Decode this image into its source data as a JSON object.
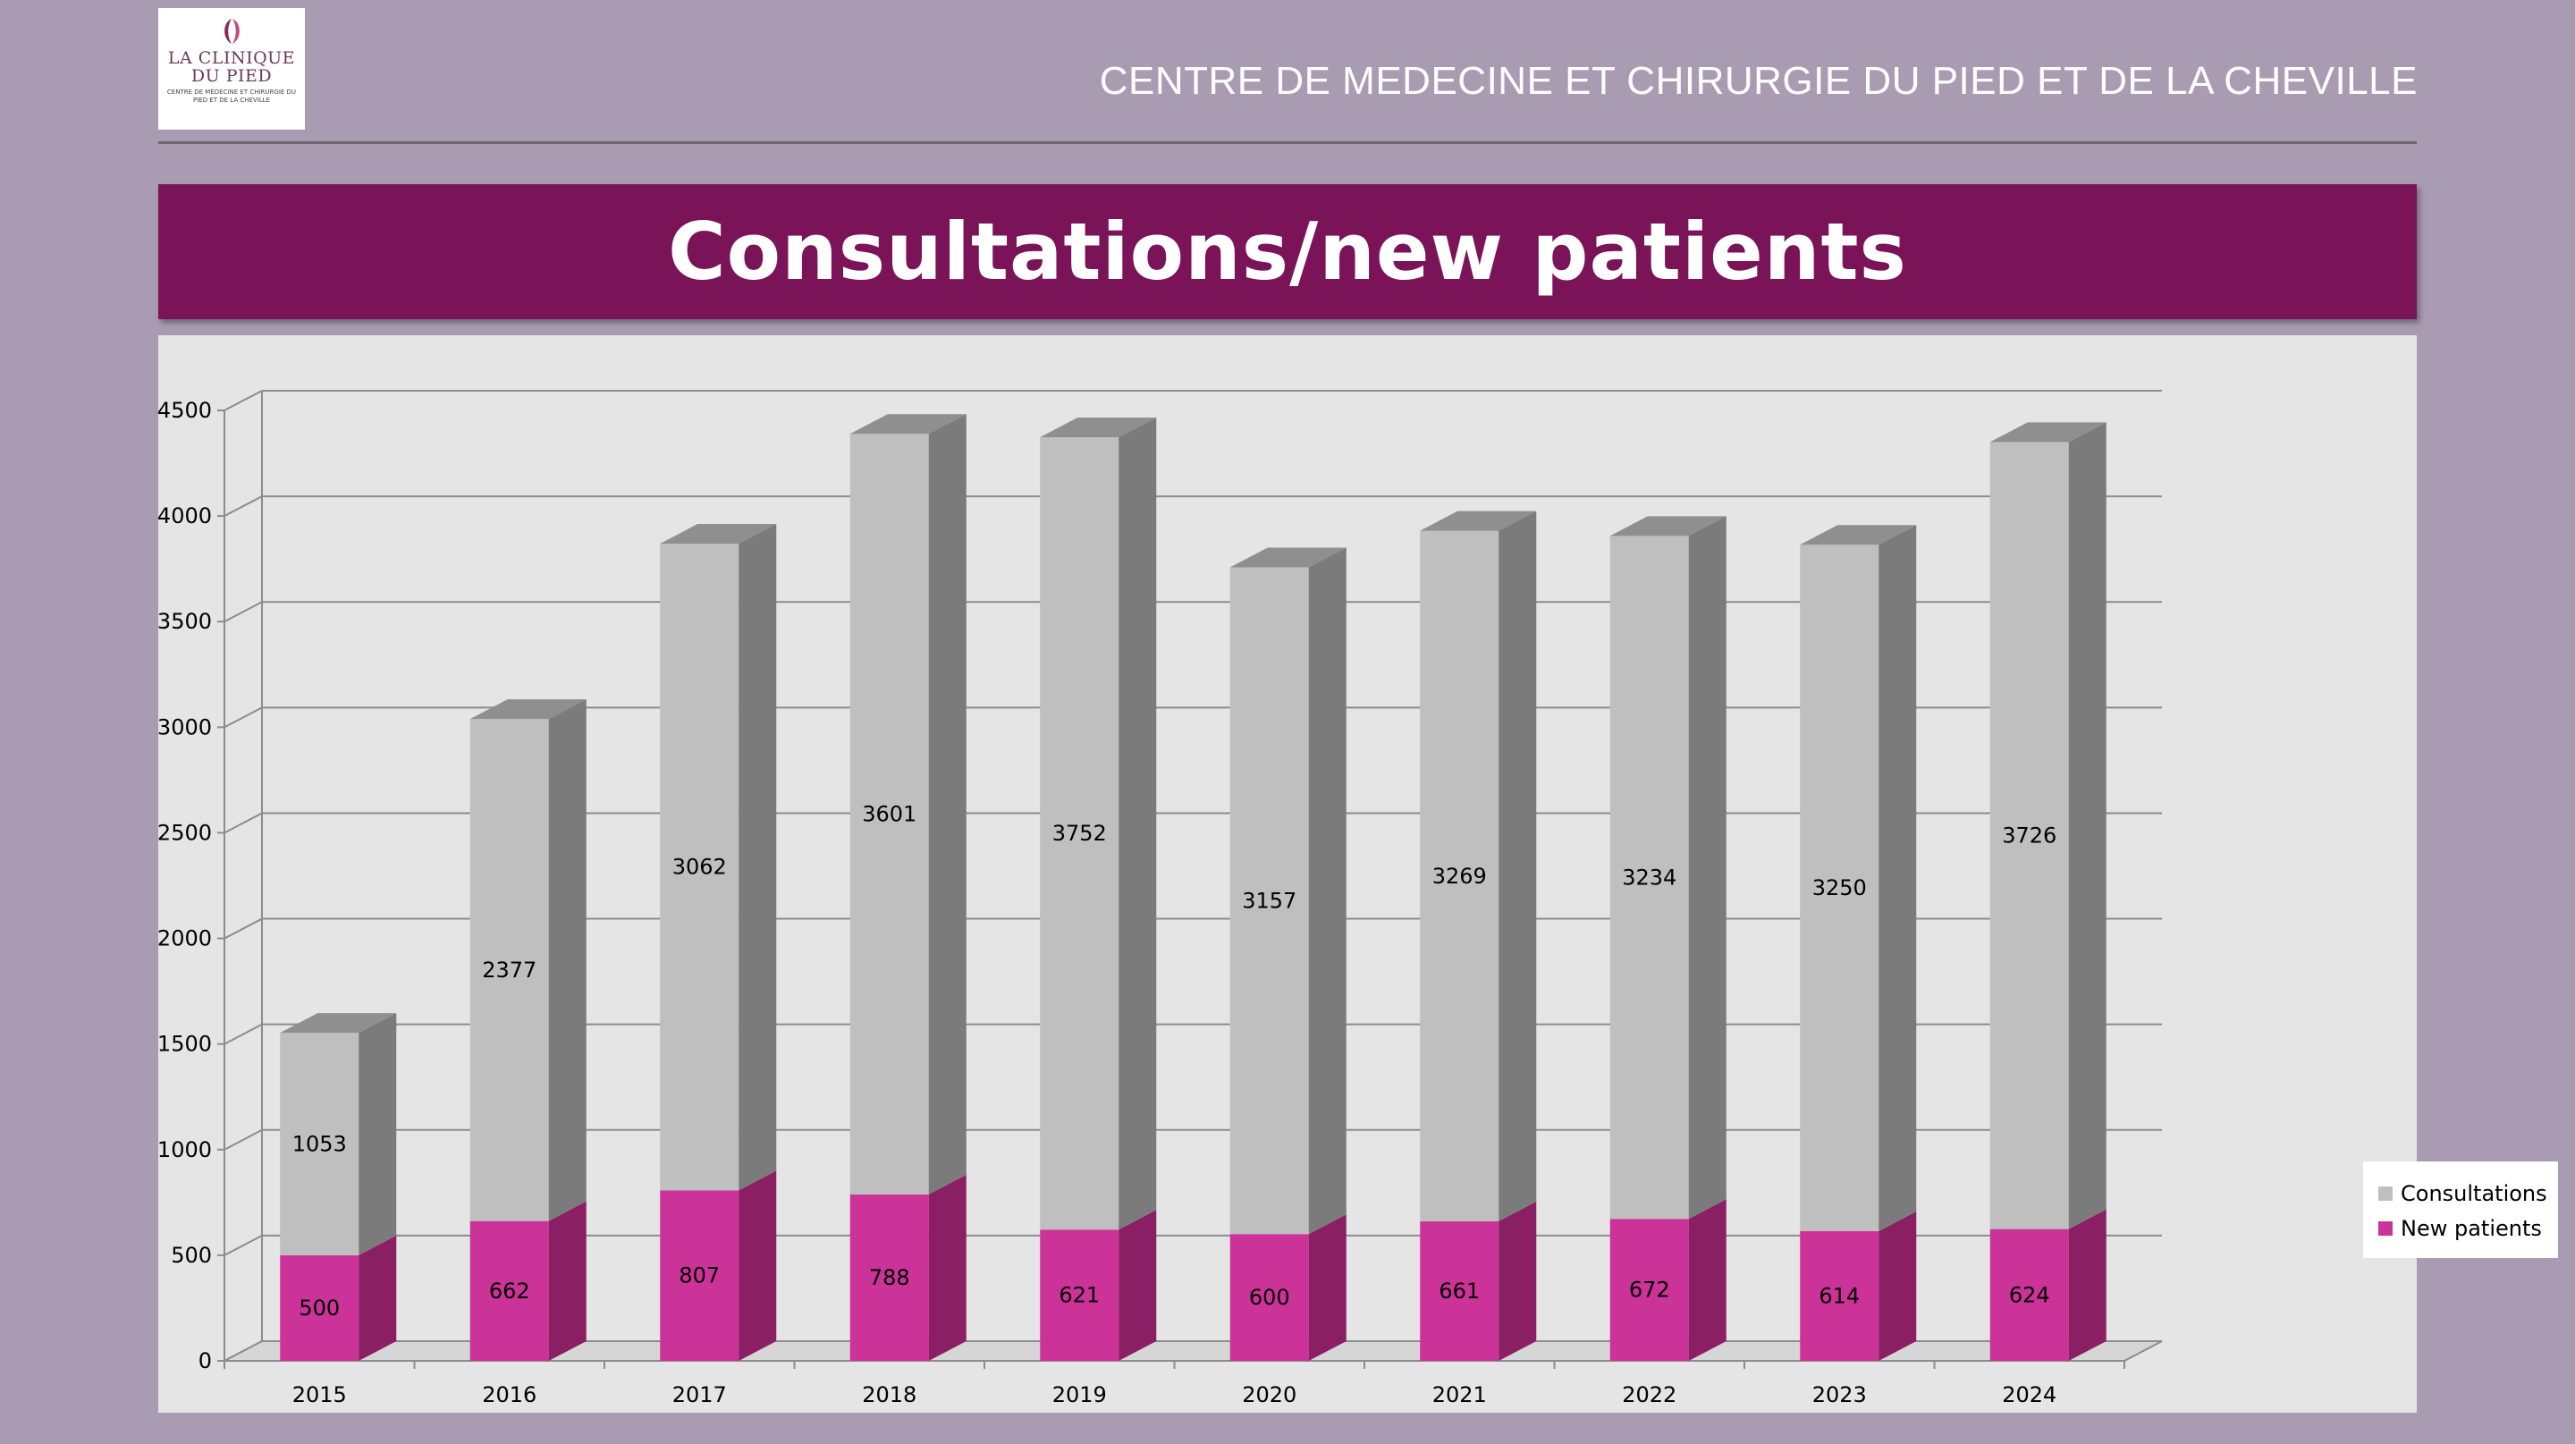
{
  "logo": {
    "line1": "LA CLINIQUE",
    "line2": "DU PIED",
    "tagline": "CENTRE DE MÉDECINE ET CHIRURGIE DU PIED ET DE LA CHEVILLE",
    "icon": "foot-logo-icon"
  },
  "header": {
    "title": "CENTRE DE MEDECINE ET CHIRURGIE DU PIED ET DE LA CHEVILLE"
  },
  "banner": {
    "title": "Consultations/new patients"
  },
  "colors": {
    "background": "#a99bb1",
    "banner": "#7b1358",
    "consult_front": "#bfbfbf",
    "consult_side": "#7b7b7b",
    "consult_top": "#8f8f8f",
    "new_front": "#cc3399",
    "new_side": "#8a1f63"
  },
  "chart_data": {
    "type": "bar",
    "stacked": true,
    "three_d": true,
    "title": "Consultations/new patients",
    "categories": [
      "2015",
      "2016",
      "2017",
      "2018",
      "2019",
      "2020",
      "2021",
      "2022",
      "2023",
      "2024"
    ],
    "series": [
      {
        "name": "New patients",
        "values": [
          500,
          662,
          807,
          788,
          621,
          600,
          661,
          672,
          614,
          624
        ]
      },
      {
        "name": "Consultations",
        "values": [
          1053,
          2377,
          3062,
          3601,
          3752,
          3157,
          3269,
          3234,
          3250,
          3726
        ]
      }
    ],
    "ylim": [
      0,
      4500
    ],
    "yticks": [
      "0",
      "500",
      "1000",
      "1500",
      "2000",
      "2500",
      "3000",
      "3500",
      "4000",
      "4500"
    ],
    "legend": [
      "Consultations",
      "New patients"
    ],
    "legend_position": "right",
    "grid": true
  }
}
